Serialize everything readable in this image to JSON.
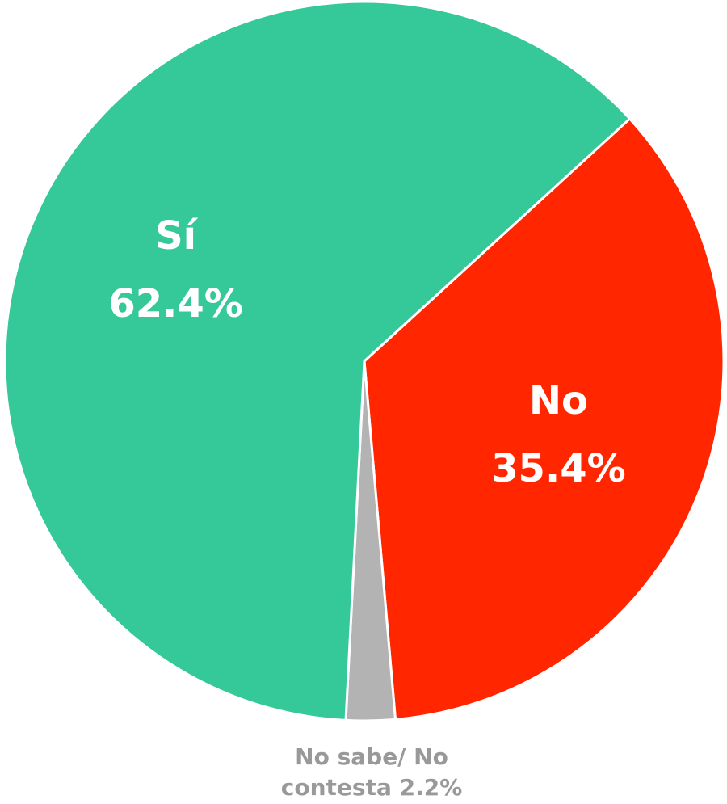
{
  "chart_data": {
    "type": "pie",
    "categories": [
      "Sí",
      "No",
      "No sabe/ No contesta"
    ],
    "values": [
      62.4,
      35.4,
      2.2
    ],
    "value_labels": [
      "62.4%",
      "35.4%",
      "2.2%"
    ],
    "colors": [
      "#35c898",
      "#ff2600",
      "#b3b3b3"
    ]
  }
}
